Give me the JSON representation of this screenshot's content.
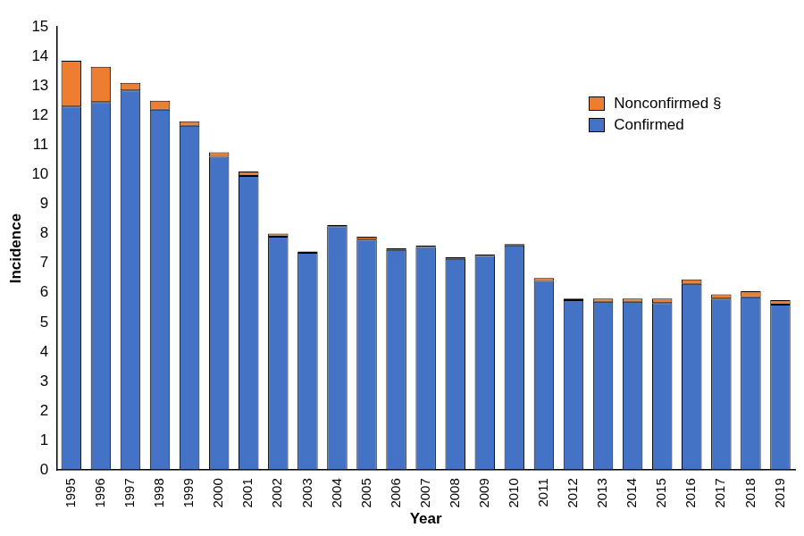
{
  "chart_data": {
    "type": "bar",
    "stacked": true,
    "grid": false,
    "legend": "upper right",
    "x_label": "Year",
    "y_label": "Incidence",
    "categories": [
      "1995",
      "1996",
      "1997",
      "1998",
      "1999",
      "2000",
      "2001",
      "2002",
      "2003",
      "2004",
      "2005",
      "2006",
      "2007",
      "2008",
      "2009",
      "2010",
      "2011",
      "2012",
      "2013",
      "2014",
      "2015",
      "2016",
      "2017",
      "2018",
      "2019"
    ],
    "series": [
      {
        "name": "Nonconfirmed §",
        "color": "#ed7d31",
        "values": [
          1.55,
          1.2,
          0.25,
          0.3,
          0.15,
          0.15,
          0.15,
          0.1,
          0.05,
          0.05,
          0.1,
          0.05,
          0.05,
          0.05,
          0.05,
          0.05,
          0.1,
          0.05,
          0.1,
          0.1,
          0.15,
          0.15,
          0.15,
          0.2,
          0.15
        ]
      },
      {
        "name": "Confirmed",
        "color": "#4472c4",
        "values": [
          12.3,
          12.45,
          12.85,
          12.2,
          11.65,
          10.6,
          9.95,
          7.9,
          7.35,
          8.25,
          7.8,
          7.45,
          7.55,
          7.15,
          7.25,
          7.6,
          6.4,
          5.75,
          5.7,
          5.7,
          5.65,
          6.3,
          5.8,
          5.85,
          5.6
        ]
      }
    ],
    "ylim": [
      0,
      15
    ],
    "yticks": [
      0,
      1,
      2,
      3,
      4,
      5,
      6,
      7,
      8,
      9,
      10,
      11,
      12,
      13,
      14,
      15
    ]
  }
}
